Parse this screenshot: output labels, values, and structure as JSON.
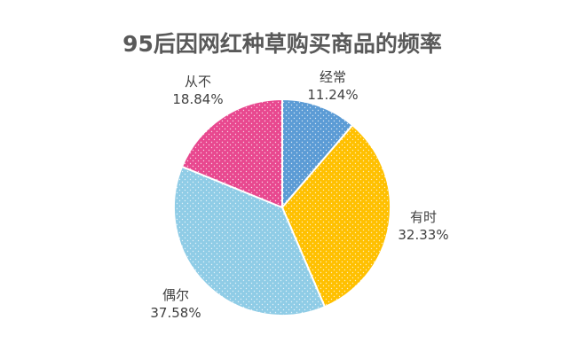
{
  "chart_data": {
    "type": "pie",
    "title": "95后因网红种草购买商品的频率",
    "slices": [
      {
        "label": "经常",
        "value": 11.24,
        "value_label": "11.24%",
        "color": "#5b9bd5"
      },
      {
        "label": "有时",
        "value": 32.33,
        "value_label": "32.33%",
        "color": "#ffc000"
      },
      {
        "label": "偶尔",
        "value": 37.58,
        "value_label": "37.58%",
        "color": "#8fcce6"
      },
      {
        "label": "从不",
        "value": 18.84,
        "value_label": "18.84%",
        "color": "#e8488f"
      }
    ],
    "start_angle": "12 o'clock",
    "direction": "clockwise",
    "pattern": "dotted",
    "legend": "none"
  }
}
